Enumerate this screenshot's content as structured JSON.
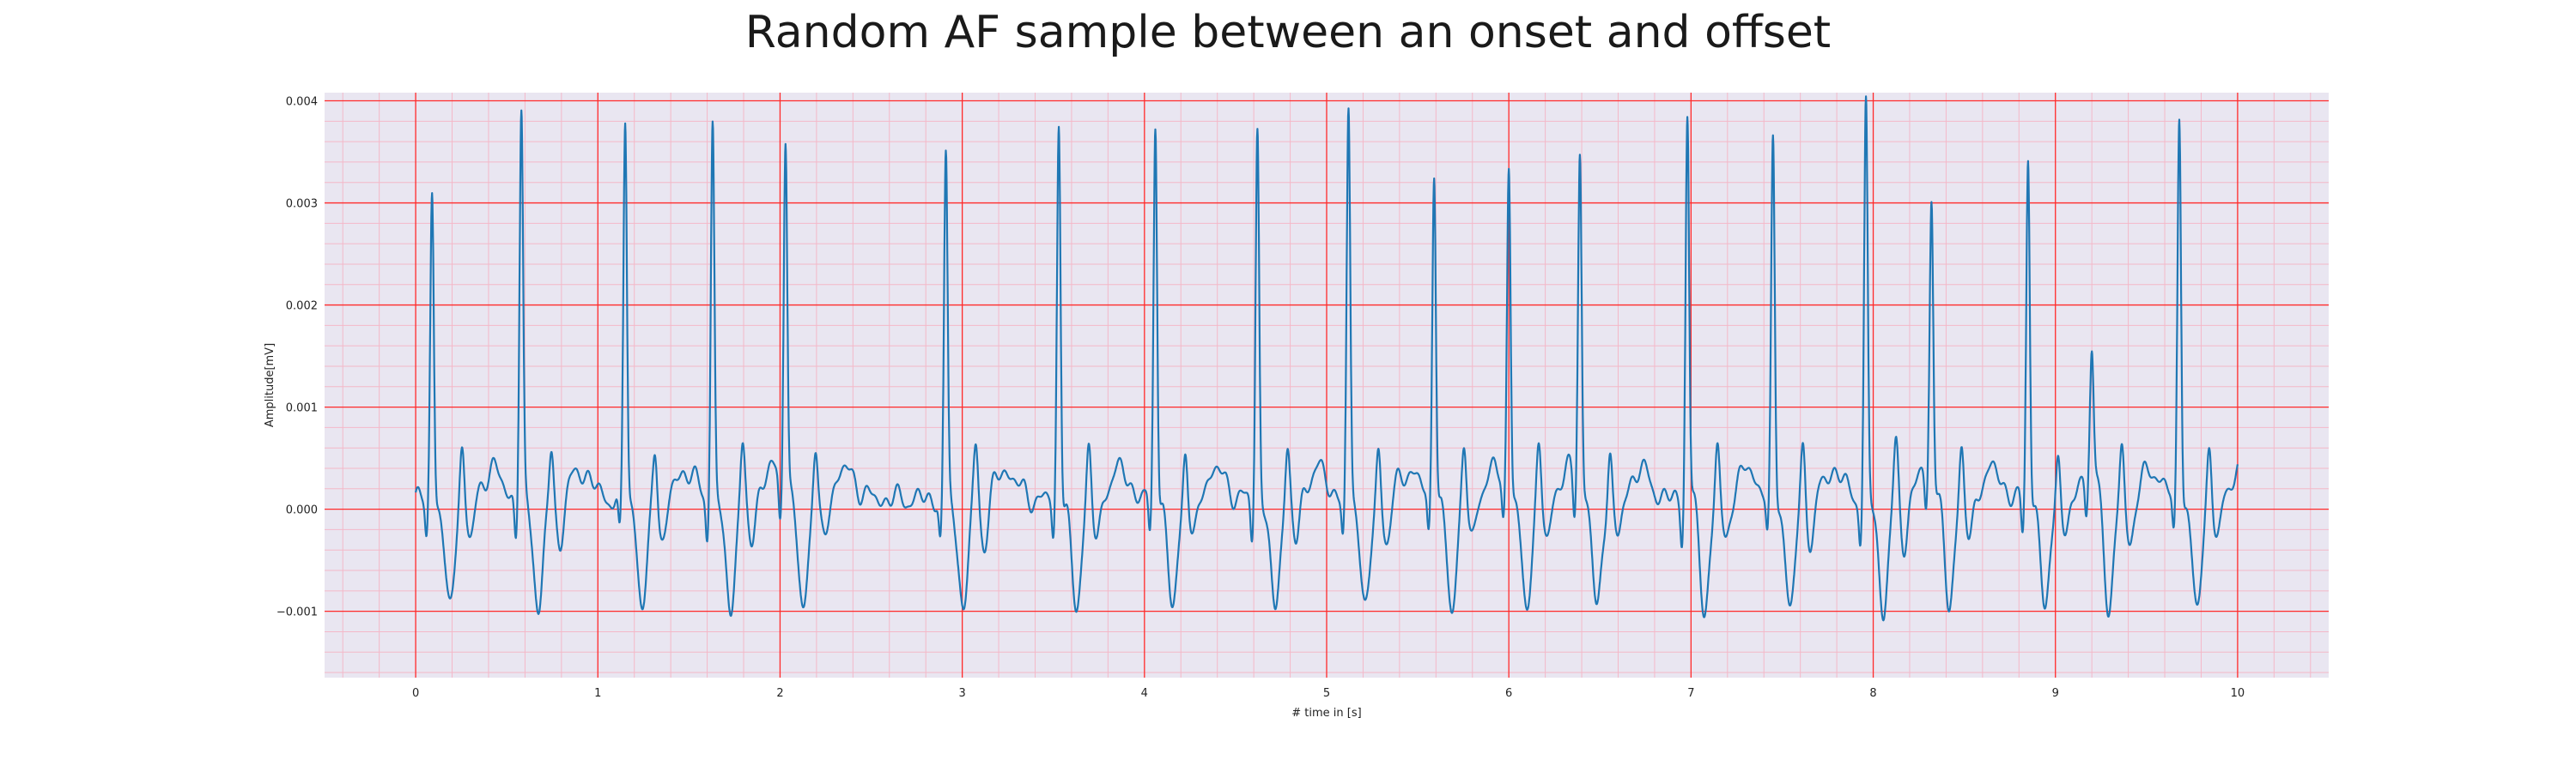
{
  "chart_data": {
    "type": "line",
    "title": "Random AF sample between an onset and offset",
    "xlabel": "# time in [s]",
    "ylabel": "Amplitude[mV]",
    "xlim": [
      -0.5,
      10.5
    ],
    "ylim": [
      -0.00165,
      0.00408
    ],
    "x_ticks": [
      0,
      1,
      2,
      3,
      4,
      5,
      6,
      7,
      8,
      9,
      10
    ],
    "y_ticks": [
      -0.001,
      0.0,
      0.001,
      0.002,
      0.003,
      0.004
    ],
    "y_tick_labels": [
      "−0.001",
      "0.000",
      "0.001",
      "0.002",
      "0.003",
      "0.004"
    ],
    "grid": true,
    "major_grid_color": "#ff2a2a",
    "minor_grid_color": "#f4b8c8",
    "background_color": "#e9e6f1",
    "line_color": "#1f77b4",
    "r_peaks": [
      {
        "t": 0.09,
        "amp": 0.00303
      },
      {
        "t": 0.58,
        "amp": 0.00374
      },
      {
        "t": 1.15,
        "amp": 0.00372
      },
      {
        "t": 1.63,
        "amp": 0.0037
      },
      {
        "t": 2.03,
        "amp": 0.00347
      },
      {
        "t": 2.91,
        "amp": 0.00333
      },
      {
        "t": 3.53,
        "amp": 0.0037
      },
      {
        "t": 4.06,
        "amp": 0.00372
      },
      {
        "t": 4.62,
        "amp": 0.00363
      },
      {
        "t": 5.12,
        "amp": 0.00377
      },
      {
        "t": 5.59,
        "amp": 0.00326
      },
      {
        "t": 6.0,
        "amp": 0.00321
      },
      {
        "t": 6.39,
        "amp": 0.00325
      },
      {
        "t": 6.98,
        "amp": 0.00378
      },
      {
        "t": 7.45,
        "amp": 0.00346
      },
      {
        "t": 7.96,
        "amp": 0.00382
      },
      {
        "t": 8.32,
        "amp": 0.00272
      },
      {
        "t": 8.85,
        "amp": 0.00338
      },
      {
        "t": 9.2,
        "amp": 0.00114
      },
      {
        "t": 9.68,
        "amp": 0.00378
      }
    ]
  }
}
